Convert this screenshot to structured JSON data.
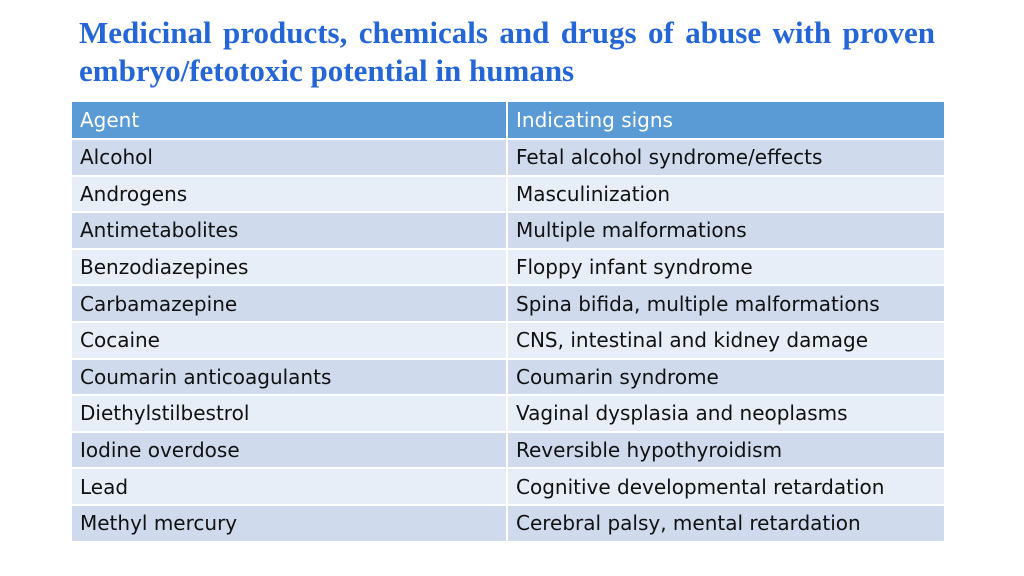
{
  "title": "Medicinal products, chemicals and drugs of abuse with proven embryo/fetotoxic potential in humans",
  "table": {
    "headers": [
      "Agent",
      "Indicating signs"
    ],
    "rows": [
      [
        "Alcohol",
        "Fetal alcohol syndrome/effects"
      ],
      [
        "Androgens",
        "Masculinization"
      ],
      [
        "Antimetabolites",
        "Multiple malformations"
      ],
      [
        "Benzodiazepines",
        "Floppy infant syndrome"
      ],
      [
        "Carbamazepine",
        "Spina bifida, multiple malformations"
      ],
      [
        "Cocaine",
        "CNS, intestinal and kidney damage"
      ],
      [
        "Coumarin anticoagulants",
        "Coumarin syndrome"
      ],
      [
        "Diethylstilbestrol",
        "Vaginal dysplasia and neoplasms"
      ],
      [
        "Iodine overdose",
        "Reversible hypothyroidism"
      ],
      [
        "Lead",
        "Cognitive developmental retardation"
      ],
      [
        "Methyl mercury",
        "Cerebral palsy, mental retardation"
      ]
    ]
  },
  "colors": {
    "title": "#2566d6",
    "header_bg": "#5b9bd5",
    "row_odd_bg": "#cfdaed",
    "row_even_bg": "#e8eef7"
  }
}
